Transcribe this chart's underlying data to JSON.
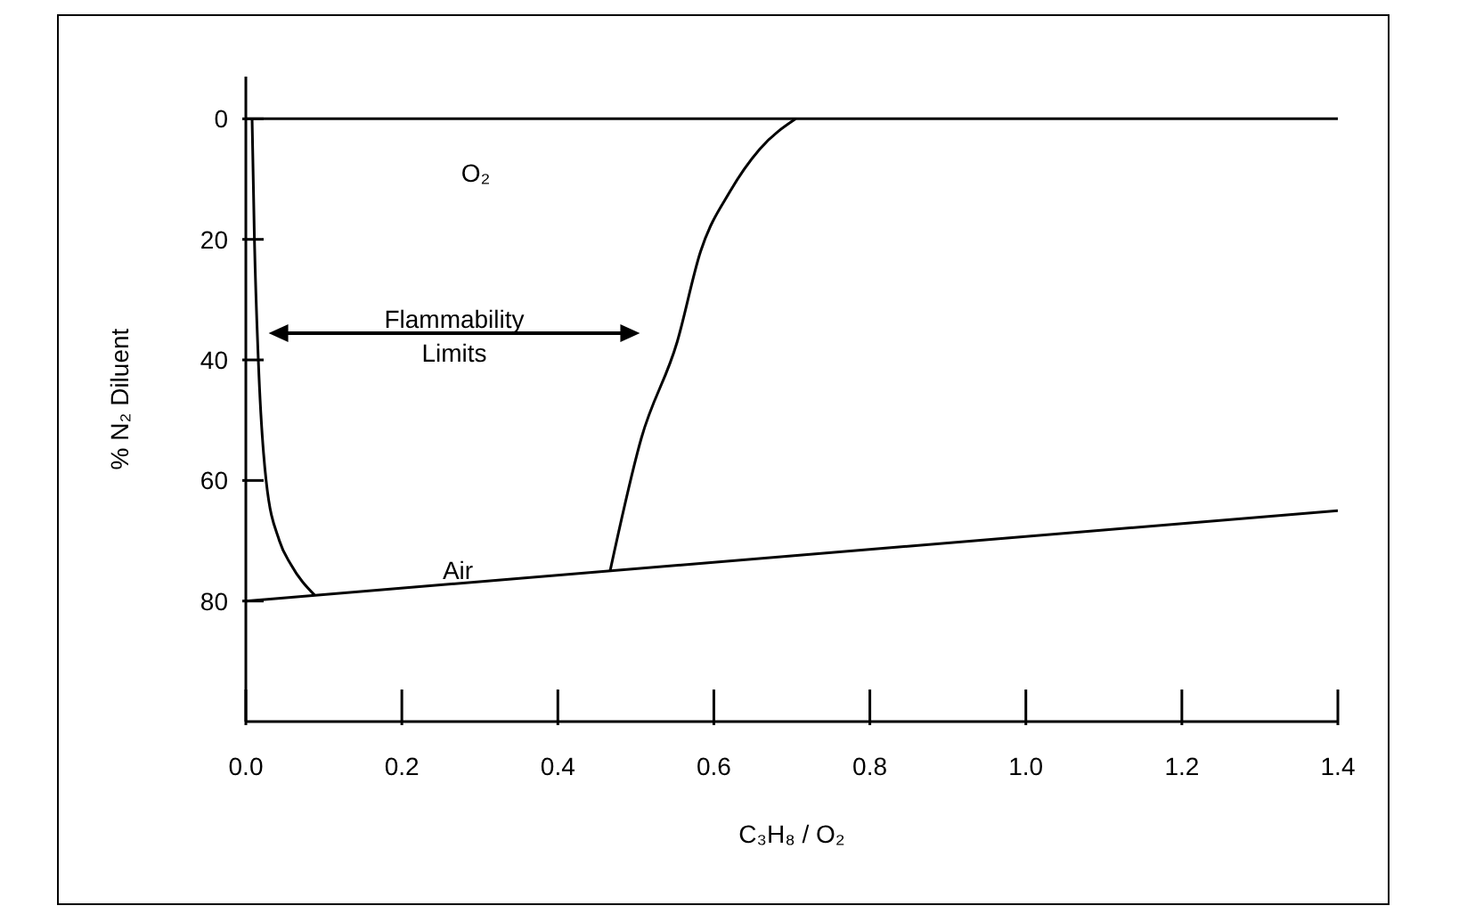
{
  "chart_data": {
    "type": "line",
    "xlabel": "C₃H₈ / O₂",
    "ylabel": "% N₂ Diluent",
    "xlim": [
      0,
      1.4
    ],
    "xticks": [
      {
        "value": 0,
        "label": "0.0"
      },
      0.2,
      0.4,
      0.6,
      0.8,
      {
        "value": 1,
        "label": "1.0"
      },
      1.2,
      1.4
    ],
    "ylim": [
      100,
      -7
    ],
    "yticks": [
      0,
      20,
      40,
      60,
      80
    ],
    "marker": "none",
    "line_style": "solid",
    "series": [
      {
        "color": "#000000",
        "x": [
          0,
          1.4
        ],
        "values": [
          0,
          0
        ]
      },
      {
        "color": "#000000",
        "x": [
          0,
          1.4
        ],
        "values": [
          80,
          65
        ]
      },
      {
        "color": "#000000",
        "x": [
          0.008,
          0.011,
          0.016,
          0.026,
          0.043,
          0.058,
          0.088
        ],
        "values": [
          0,
          20,
          40,
          60,
          70,
          74,
          79
        ]
      },
      {
        "color": "#000000",
        "x": [
          0.467,
          0.507,
          0.553,
          0.583,
          0.621,
          0.659,
          0.705
        ],
        "values": [
          75,
          53,
          37,
          22,
          12,
          5,
          0
        ]
      }
    ],
    "annotations": [
      "O₂",
      "Air",
      "Flammability Limits"
    ]
  }
}
